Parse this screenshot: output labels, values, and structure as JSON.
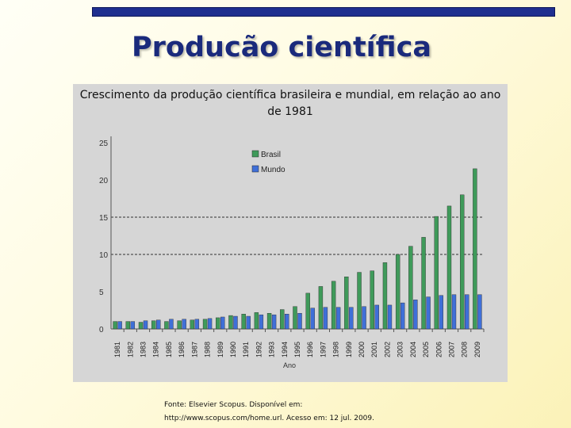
{
  "slide": {
    "title": "Producão científica",
    "subtitle": "Crescimento da produção científica brasileira e mundial, em relação ao ano de 1981",
    "source_line1": "Fonte: Elsevier Scopus. Disponível em:",
    "source_line2": "http://www.scopus.com/home.url. Acesso em: 12 jul. 2009."
  },
  "chart_data": {
    "type": "bar",
    "title": "Crescimento da produção científica brasileira e mundial, em relação ao ano de 1981",
    "xlabel": "Ano",
    "ylabel": "",
    "ylim": [
      0,
      25
    ],
    "yticks": [
      0,
      5,
      10,
      15,
      20,
      25
    ],
    "gridlines": [
      10,
      15
    ],
    "legend_position": "top-right",
    "categories": [
      "1981",
      "1982",
      "1983",
      "1984",
      "1985",
      "1986",
      "1987",
      "1988",
      "1989",
      "1990",
      "1991",
      "1992",
      "1993",
      "1994",
      "1995",
      "1996",
      "1997",
      "1998",
      "1999",
      "2000",
      "2001",
      "2002",
      "2003",
      "2004",
      "2005",
      "2006",
      "2007",
      "2008",
      "2009"
    ],
    "series": [
      {
        "name": "Brasil",
        "color": "#3f9a5a",
        "values": [
          1.0,
          1.0,
          0.9,
          1.1,
          1.0,
          1.1,
          1.2,
          1.3,
          1.5,
          1.8,
          2.0,
          2.2,
          2.1,
          2.6,
          3.0,
          4.8,
          5.7,
          6.4,
          7.0,
          7.6,
          7.8,
          8.9,
          10.0,
          11.1,
          12.3,
          15.1,
          16.5,
          18.0,
          21.5
        ]
      },
      {
        "name": "Mundo",
        "color": "#3f6fd8",
        "values": [
          1.0,
          1.0,
          1.1,
          1.2,
          1.3,
          1.3,
          1.3,
          1.4,
          1.6,
          1.7,
          1.7,
          1.9,
          1.9,
          2.0,
          2.1,
          2.8,
          2.9,
          2.9,
          2.9,
          3.0,
          3.2,
          3.2,
          3.5,
          3.9,
          4.3,
          4.5,
          4.6,
          4.6,
          4.6
        ]
      }
    ]
  }
}
